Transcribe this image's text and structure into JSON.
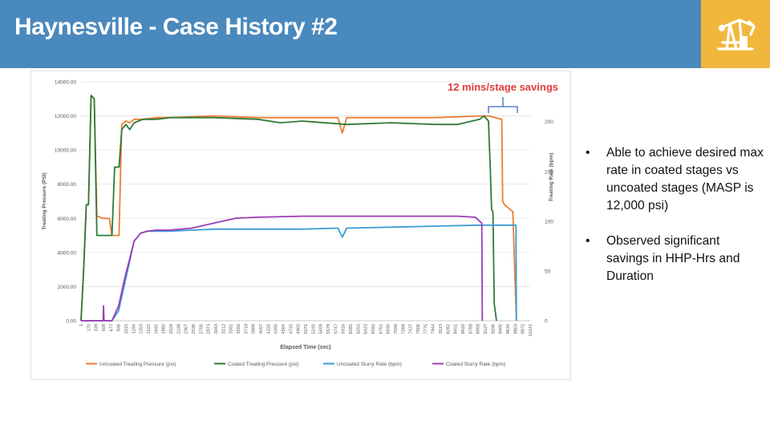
{
  "slide": {
    "title": "Haynesville - Case History #2",
    "logo_icon": "oil-pumpjack-icon",
    "colors": {
      "header": "#4a89bd",
      "logo_bg": "#f1b73d"
    }
  },
  "bullets": [
    "Able to achieve desired max rate in coated stages vs uncoated stages (MASP is 12,000 psi)",
    "Observed significant savings in HHP-Hrs and Duration"
  ],
  "chart_data": {
    "type": "line",
    "annotation": "12 mins/stage savings",
    "xlabel": "Elapsed Time (sec)",
    "ylabel_left": "Treating Pressure (PSI)",
    "ylabel_right": "Treating Rate (bpm)",
    "ylim_left": [
      0,
      14000
    ],
    "ylim_right": [
      0,
      240
    ],
    "yticks_left": [
      "0.00",
      "2000.00",
      "4000.00",
      "6000.00",
      "8000.00",
      "10000.00",
      "12000.00",
      "14000.00"
    ],
    "yticks_right": [
      "0",
      "50",
      "100",
      "150",
      "200"
    ],
    "xlim": [
      1,
      10141
    ],
    "xticks": [
      "1",
      "170",
      "339",
      "508",
      "677",
      "846",
      "1015",
      "1184",
      "1353",
      "1522",
      "1691",
      "1860",
      "2029",
      "2198",
      "2367",
      "2536",
      "2705",
      "2874",
      "3043",
      "3212",
      "3381",
      "3550",
      "3719",
      "3888",
      "4057",
      "4226",
      "4395",
      "4564",
      "4733",
      "4902",
      "5071",
      "5240",
      "5409",
      "5578",
      "5747",
      "5916",
      "6085",
      "6254",
      "6423",
      "6592",
      "6761",
      "6930",
      "7099",
      "7268",
      "7437",
      "7606",
      "7775",
      "7944",
      "8113",
      "8282",
      "8451",
      "8620",
      "8789",
      "8958",
      "9127",
      "9296",
      "9465",
      "9634",
      "9803",
      "9972",
      "10141"
    ],
    "grid": "horizontal",
    "legend_position": "bottom",
    "series": [
      {
        "name": "Uncoated Treating Pressure (psi)",
        "axis": "left",
        "color": "#ed7d31",
        "x": [
          1,
          60,
          120,
          170,
          230,
          300,
          360,
          420,
          470,
          640,
          700,
          860,
          920,
          1015,
          1100,
          1200,
          1400,
          1700,
          2000,
          3000,
          4000,
          5000,
          5800,
          5900,
          6000,
          7000,
          8000,
          9000,
          9200,
          9500,
          9520,
          9560,
          9700,
          9750,
          9830
        ],
        "y": [
          0,
          3000,
          6800,
          6800,
          13200,
          13000,
          6100,
          6100,
          6000,
          6000,
          5000,
          5000,
          11500,
          11700,
          11600,
          11800,
          11800,
          11900,
          11900,
          12000,
          11900,
          11900,
          11900,
          11000,
          11900,
          11900,
          11900,
          12000,
          12000,
          11800,
          7000,
          6800,
          6500,
          6400,
          0
        ]
      },
      {
        "name": "Coated Treating Pressure (psi)",
        "axis": "left",
        "color": "#2f7a38",
        "x": [
          1,
          60,
          120,
          170,
          230,
          300,
          360,
          420,
          470,
          700,
          760,
          860,
          920,
          1015,
          1100,
          1200,
          1400,
          1700,
          2000,
          3000,
          4000,
          4500,
          5000,
          6000,
          7000,
          8000,
          8500,
          9000,
          9100,
          9200,
          9240,
          9270,
          9300,
          9330,
          9380
        ],
        "y": [
          0,
          3000,
          6800,
          6800,
          13200,
          13000,
          5000,
          5000,
          5000,
          5000,
          9000,
          9000,
          11200,
          11500,
          11200,
          11600,
          11800,
          11800,
          11900,
          11900,
          11800,
          11600,
          11700,
          11500,
          11600,
          11500,
          11500,
          11800,
          12000,
          11700,
          9000,
          6500,
          6400,
          1000,
          0
        ]
      },
      {
        "name": "Uncoated Slurry Rate (bpm)",
        "axis": "right",
        "color": "#3d9bd8",
        "x": [
          1,
          700,
          850,
          1000,
          1100,
          1200,
          1350,
          1500,
          1700,
          2000,
          2500,
          3000,
          4000,
          5000,
          5800,
          5900,
          6000,
          7000,
          8000,
          9000,
          9300,
          9600,
          9820,
          9830
        ],
        "y": [
          0,
          0,
          10,
          40,
          60,
          80,
          88,
          90,
          90,
          90,
          91,
          92,
          92,
          92,
          93,
          84,
          93,
          94,
          95,
          96,
          96,
          96,
          96,
          0
        ]
      },
      {
        "name": "Coated Slurry Rate (bpm)",
        "axis": "right",
        "color": "#9b3db5",
        "x": [
          1,
          500,
          510,
          520,
          700,
          850,
          1000,
          1100,
          1200,
          1350,
          1500,
          1700,
          2000,
          2500,
          3000,
          3500,
          4000,
          5000,
          6000,
          7000,
          8000,
          8500,
          8900,
          9000,
          9050,
          9060
        ],
        "y": [
          0,
          0,
          15,
          0,
          0,
          15,
          45,
          62,
          80,
          88,
          90,
          91,
          91,
          93,
          98,
          103,
          104,
          105,
          105,
          105,
          105,
          105,
          104,
          100,
          98,
          0
        ]
      }
    ]
  }
}
